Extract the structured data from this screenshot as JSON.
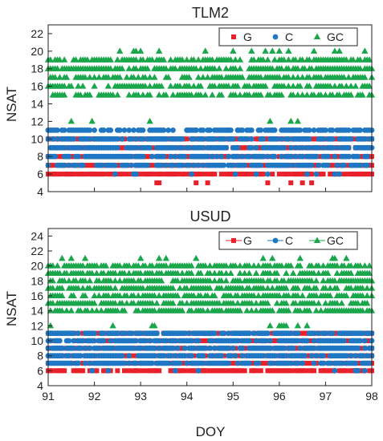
{
  "chart_data": [
    {
      "type": "scatter",
      "title": "TLM2",
      "xlabel": "",
      "ylabel": "NSAT",
      "xlim": [
        91,
        98
      ],
      "ylim": [
        4,
        23
      ],
      "yticks": [
        4,
        6,
        8,
        10,
        12,
        14,
        16,
        18,
        20,
        22
      ],
      "xticks": [
        91,
        92,
        93,
        94,
        95,
        96,
        97,
        98
      ],
      "show_x_tick_labels": false,
      "legend_position": "top-right",
      "series": [
        {
          "name": "G",
          "marker": "square",
          "color": "#e8212a",
          "levels": [
            6,
            7,
            8,
            9,
            10
          ],
          "min": 5,
          "max": 10
        },
        {
          "name": "C",
          "marker": "circle",
          "color": "#1f77c4",
          "levels": [
            7,
            8,
            9,
            10,
            11
          ],
          "min": 6,
          "max": 11
        },
        {
          "name": "GC",
          "marker": "triangle",
          "color": "#1aa64a",
          "levels": [
            15,
            16,
            17,
            18,
            19
          ],
          "min": 12,
          "max": 20
        }
      ]
    },
    {
      "type": "scatter",
      "title": "USUD",
      "xlabel": "DOY",
      "ylabel": "NSAT",
      "xlim": [
        91,
        98
      ],
      "ylim": [
        4,
        25
      ],
      "yticks": [
        4,
        6,
        8,
        10,
        12,
        14,
        16,
        18,
        20,
        22,
        24
      ],
      "xticks": [
        91,
        92,
        93,
        94,
        95,
        96,
        97,
        98
      ],
      "show_x_tick_labels": true,
      "legend_position": "top-right",
      "series": [
        {
          "name": "G",
          "marker": "square",
          "color": "#e8212a",
          "levels": [
            6,
            7,
            8,
            9,
            10,
            11
          ],
          "min": 6,
          "max": 11
        },
        {
          "name": "C",
          "marker": "circle",
          "color": "#1f77c4",
          "levels": [
            7,
            8,
            9,
            10,
            11
          ],
          "min": 6,
          "max": 11
        },
        {
          "name": "GC",
          "marker": "triangle",
          "color": "#1aa64a",
          "levels": [
            14,
            15,
            16,
            17,
            18,
            19,
            20
          ],
          "min": 12,
          "max": 21
        }
      ]
    }
  ]
}
